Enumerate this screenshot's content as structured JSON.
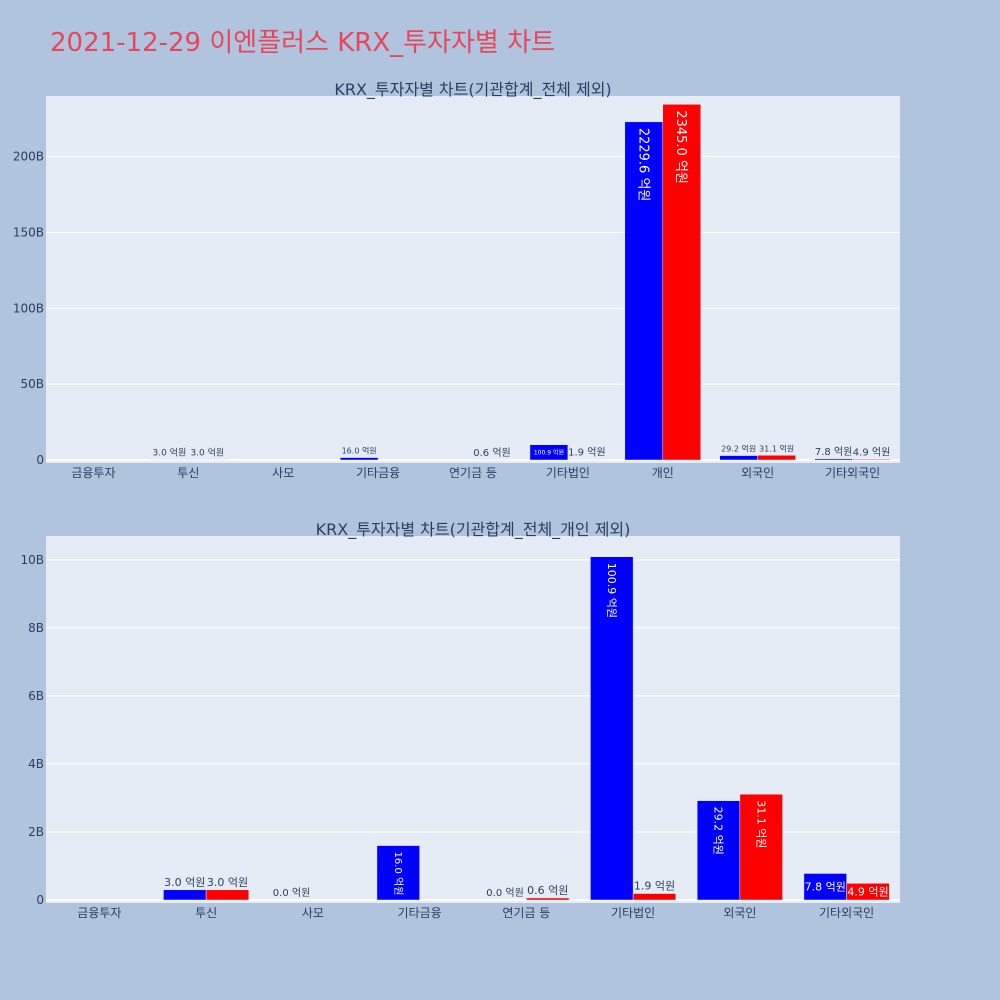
{
  "title": "2021-12-29 이엔플러스 KRX_투자자별 차트",
  "colors": {
    "bg": "#b0c4de",
    "plot_bg": "#e5ecf6",
    "series_a": "#0000ff",
    "series_b": "#ff0000",
    "title": "#e8465c"
  },
  "chart_data": [
    {
      "type": "bar",
      "title": "KRX_투자자별 차트(기관합계_전체 제외)",
      "categories": [
        "금융투자",
        "투신",
        "사모",
        "기타금융",
        "연기금 등",
        "기타법인",
        "개인",
        "외국인",
        "기타외국인"
      ],
      "yticks": [
        "0",
        "50B",
        "100B",
        "150B",
        "200B"
      ],
      "ylim": [
        0,
        240
      ],
      "series": [
        {
          "values": [
            null,
            0.3,
            null,
            1.6,
            null,
            10.09,
            222.96,
            2.92,
            0.78
          ],
          "labels": [
            "",
            "3.0 억원",
            "",
            "16.0 억원",
            "",
            "100.9 억원",
            "2229.6 억원",
            "29.2 억원",
            "7.8 억원"
          ]
        },
        {
          "values": [
            null,
            0.3,
            null,
            null,
            0.06,
            0.19,
            234.5,
            3.11,
            0.49
          ],
          "labels": [
            "",
            "3.0 억원",
            "",
            "",
            "0.6 억원",
            "1.9 억원",
            "2345.0 억원",
            "31.1 억원",
            "4.9 억원"
          ]
        }
      ]
    },
    {
      "type": "bar",
      "title": "KRX_투자자별 차트(기관합계_전체_개인 제외)",
      "categories": [
        "금융투자",
        "투신",
        "사모",
        "기타금융",
        "연기금 등",
        "기타법인",
        "외국인",
        "기타외국인"
      ],
      "yticks": [
        "0",
        "2B",
        "4B",
        "6B",
        "8B",
        "10B"
      ],
      "ylim": [
        0,
        10.7
      ],
      "series": [
        {
          "values": [
            null,
            0.3,
            0.0,
            1.6,
            0.0,
            10.09,
            2.92,
            0.78
          ],
          "labels": [
            "",
            "3.0 억원",
            "0.0 억원",
            "16.0 억원",
            "0.0 억원",
            "100.9 억원",
            "29.2 억원",
            "7.8 억원"
          ]
        },
        {
          "values": [
            null,
            0.3,
            null,
            null,
            0.06,
            0.19,
            3.11,
            0.49
          ],
          "labels": [
            "",
            "3.0 억원",
            "",
            "",
            "0.6 억원",
            "1.9 억원",
            "31.1 억원",
            "4.9 억원"
          ]
        }
      ]
    }
  ]
}
